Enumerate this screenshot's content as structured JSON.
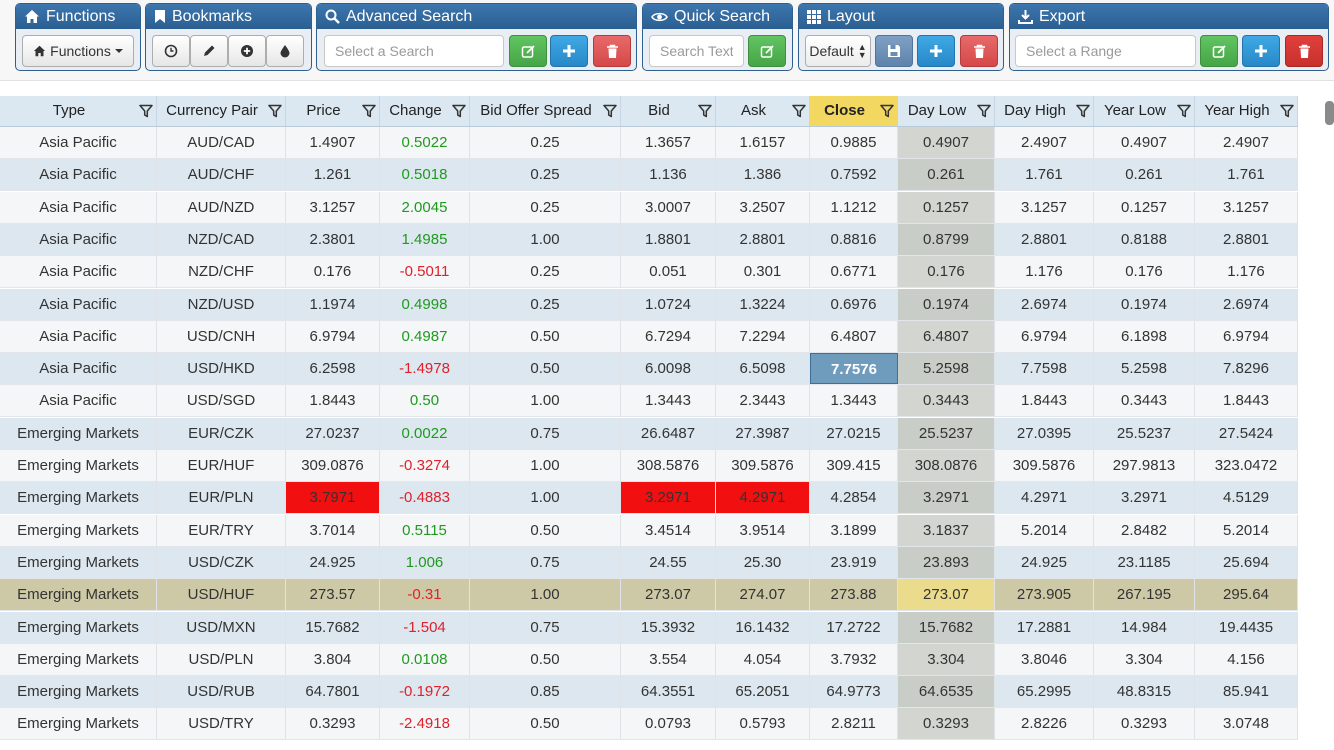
{
  "toolbar": {
    "functions": {
      "title": "Functions",
      "dropdown_label": "Functions"
    },
    "bookmarks": {
      "title": "Bookmarks"
    },
    "advanced_search": {
      "title": "Advanced Search",
      "placeholder": "Select a Search"
    },
    "quick_search": {
      "title": "Quick Search",
      "placeholder": "Search Text"
    },
    "layout": {
      "title": "Layout",
      "selected": "Default"
    },
    "export": {
      "title": "Export",
      "placeholder": "Select a Range"
    }
  },
  "grid": {
    "columns": [
      "Type",
      "Currency Pair",
      "Price",
      "Change",
      "Bid Offer Spread",
      "Bid",
      "Ask",
      "Close",
      "Day Low",
      "Day High",
      "Year Low",
      "Year High"
    ],
    "rows": [
      [
        "Asia Pacific",
        "AUD/CAD",
        "1.4907",
        "0.5022",
        "0.25",
        "1.3657",
        "1.6157",
        "0.9885",
        "0.4907",
        "2.4907",
        "0.4907",
        "2.4907"
      ],
      [
        "Asia Pacific",
        "AUD/CHF",
        "1.261",
        "0.5018",
        "0.25",
        "1.136",
        "1.386",
        "0.7592",
        "0.261",
        "1.761",
        "0.261",
        "1.761"
      ],
      [
        "Asia Pacific",
        "AUD/NZD",
        "3.1257",
        "2.0045",
        "0.25",
        "3.0007",
        "3.2507",
        "1.1212",
        "0.1257",
        "3.1257",
        "0.1257",
        "3.1257"
      ],
      [
        "Asia Pacific",
        "NZD/CAD",
        "2.3801",
        "1.4985",
        "1.00",
        "1.8801",
        "2.8801",
        "0.8816",
        "0.8799",
        "2.8801",
        "0.8188",
        "2.8801"
      ],
      [
        "Asia Pacific",
        "NZD/CHF",
        "0.176",
        "-0.5011",
        "0.25",
        "0.051",
        "0.301",
        "0.6771",
        "0.176",
        "1.176",
        "0.176",
        "1.176"
      ],
      [
        "Asia Pacific",
        "NZD/USD",
        "1.1974",
        "0.4998",
        "0.25",
        "1.0724",
        "1.3224",
        "0.6976",
        "0.1974",
        "2.6974",
        "0.1974",
        "2.6974"
      ],
      [
        "Asia Pacific",
        "USD/CNH",
        "6.9794",
        "0.4987",
        "0.50",
        "6.7294",
        "7.2294",
        "6.4807",
        "6.4807",
        "6.9794",
        "6.1898",
        "6.9794"
      ],
      [
        "Asia Pacific",
        "USD/HKD",
        "6.2598",
        "-1.4978",
        "0.50",
        "6.0098",
        "6.5098",
        "7.7576",
        "5.2598",
        "7.7598",
        "5.2598",
        "7.8296"
      ],
      [
        "Asia Pacific",
        "USD/SGD",
        "1.8443",
        "0.50",
        "1.00",
        "1.3443",
        "2.3443",
        "1.3443",
        "0.3443",
        "1.8443",
        "0.3443",
        "1.8443"
      ],
      [
        "Emerging Markets",
        "EUR/CZK",
        "27.0237",
        "0.0022",
        "0.75",
        "26.6487",
        "27.3987",
        "27.0215",
        "25.5237",
        "27.0395",
        "25.5237",
        "27.5424"
      ],
      [
        "Emerging Markets",
        "EUR/HUF",
        "309.0876",
        "-0.3274",
        "1.00",
        "308.5876",
        "309.5876",
        "309.415",
        "308.0876",
        "309.5876",
        "297.9813",
        "323.0472"
      ],
      [
        "Emerging Markets",
        "EUR/PLN",
        "3.7971",
        "-0.4883",
        "1.00",
        "3.2971",
        "4.2971",
        "4.2854",
        "3.2971",
        "4.2971",
        "3.2971",
        "4.5129"
      ],
      [
        "Emerging Markets",
        "EUR/TRY",
        "3.7014",
        "0.5115",
        "0.50",
        "3.4514",
        "3.9514",
        "3.1899",
        "3.1837",
        "5.2014",
        "2.8482",
        "5.2014"
      ],
      [
        "Emerging Markets",
        "USD/CZK",
        "24.925",
        "1.006",
        "0.75",
        "24.55",
        "25.30",
        "23.919",
        "23.893",
        "24.925",
        "23.1185",
        "25.694"
      ],
      [
        "Emerging Markets",
        "USD/HUF",
        "273.57",
        "-0.31",
        "1.00",
        "273.07",
        "274.07",
        "273.88",
        "273.07",
        "273.905",
        "267.195",
        "295.64"
      ],
      [
        "Emerging Markets",
        "USD/MXN",
        "15.7682",
        "-1.504",
        "0.75",
        "15.3932",
        "16.1432",
        "17.2722",
        "15.7682",
        "17.2881",
        "14.984",
        "19.4435"
      ],
      [
        "Emerging Markets",
        "USD/PLN",
        "3.804",
        "0.0108",
        "0.50",
        "3.554",
        "4.054",
        "3.7932",
        "3.304",
        "3.8046",
        "3.304",
        "4.156"
      ],
      [
        "Emerging Markets",
        "USD/RUB",
        "64.7801",
        "-0.1972",
        "0.85",
        "64.3551",
        "65.2051",
        "64.9773",
        "64.6535",
        "65.2995",
        "48.8315",
        "85.941"
      ],
      [
        "Emerging Markets",
        "USD/TRY",
        "0.3293",
        "-2.4918",
        "0.50",
        "0.0793",
        "0.5793",
        "2.8211",
        "0.3293",
        "2.8226",
        "0.3293",
        "3.0748"
      ]
    ],
    "selected_row": 14,
    "focused_cell": {
      "row": 7,
      "col": 7
    },
    "red_cells": [
      [
        11,
        2
      ],
      [
        11,
        5
      ],
      [
        11,
        6
      ]
    ]
  },
  "colors": {
    "header_blue": "#2b5f92",
    "positive": "#1f9a1f",
    "negative": "#e0202a",
    "alert_red": "#f20f10",
    "close_header": "#f2d760"
  },
  "icons": [
    "home-icon",
    "bookmark-icon",
    "search-icon",
    "eye-icon",
    "grid-icon",
    "download-icon",
    "clock-icon",
    "pencil-icon",
    "plus-circle-icon",
    "tint-icon",
    "edit-icon",
    "plus-icon",
    "trash-icon",
    "save-icon",
    "filter-icon"
  ]
}
